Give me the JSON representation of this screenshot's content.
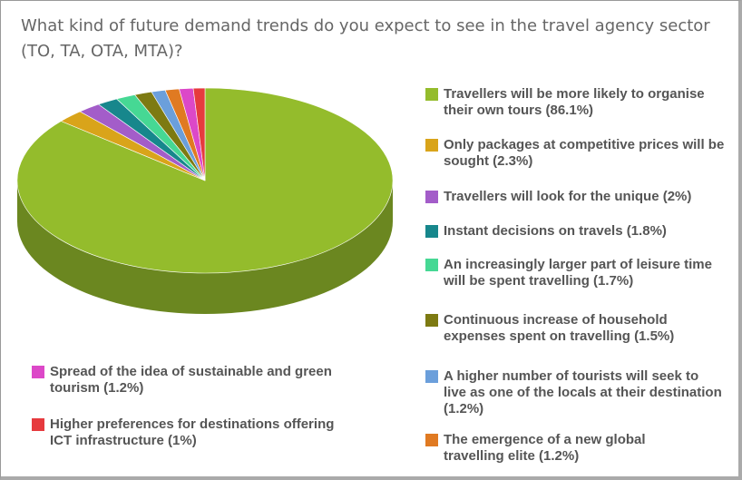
{
  "chart_data": {
    "type": "pie",
    "title": "What kind of future demand trends do you expect to see in the travel agency sector (TO, TA, OTA, MTA)?",
    "categories": [
      "Travellers will be more likely to organise their own tours (86.1%)",
      "Only packages at competitive prices will be sought (2.3%)",
      "Travellers will look for the unique (2%)",
      "Instant decisions on travels (1.8%)",
      "An increasingly larger part of leisure time will be spent travelling (1.7%)",
      "Continuous increase of household expenses spent on travelling (1.5%)",
      "A higher number of tourists will seek to live as one of the locals at their destination (1.2%)",
      "The emergence of a new global travelling elite (1.2%)",
      "Spread of the idea of sustainable and green tourism (1.2%)",
      "Higher preferences for destinations offering ICT infrastructure (1%)"
    ],
    "values": [
      86.1,
      2.3,
      2,
      1.8,
      1.7,
      1.5,
      1.2,
      1.2,
      1.2,
      1
    ],
    "colors": [
      "#94bc2c",
      "#d9a41a",
      "#a35dc9",
      "#17878c",
      "#46d894",
      "#7d7a12",
      "#6b9fdb",
      "#e07a22",
      "#dc48c8",
      "#e63a3e"
    ]
  }
}
